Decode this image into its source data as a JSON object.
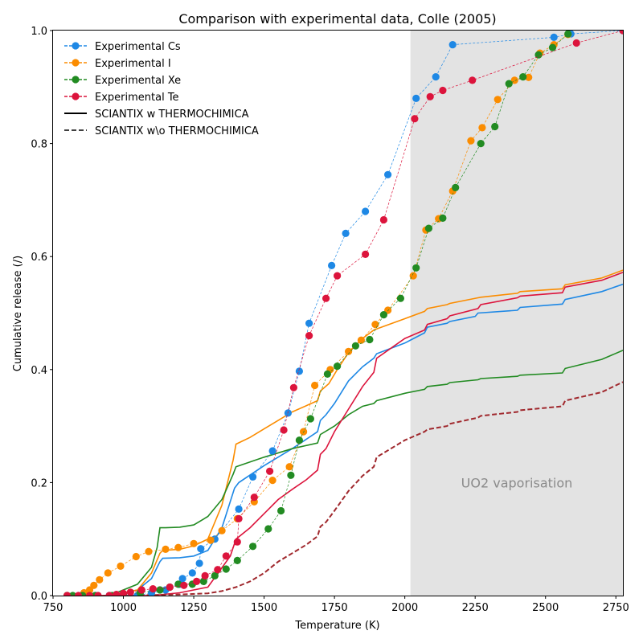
{
  "chart_data": {
    "type": "line",
    "title": "Comparison with experimental data, Colle (2005)",
    "xlabel": "Temperature (K)",
    "ylabel": "Cumulative release (/)",
    "xlim": [
      750,
      2775
    ],
    "ylim": [
      0,
      1.0
    ],
    "xticks": [
      750,
      1000,
      1250,
      1500,
      1750,
      2000,
      2250,
      2500,
      2750
    ],
    "yticks": [
      0.0,
      0.2,
      0.4,
      0.6,
      0.8,
      1.0
    ],
    "grid": false,
    "legend_position": "top-left",
    "shaded_region": {
      "x_start": 2020,
      "x_end": 2775,
      "color": "#e3e3e3",
      "label": "UO2 vaporisation",
      "label_at": [
        2200,
        0.2
      ]
    },
    "legend": [
      {
        "label": "Experimental Cs",
        "style": "marker-dashed",
        "color": "#1e88e5"
      },
      {
        "label": "Experimental I",
        "style": "marker-dashed",
        "color": "#fb8c00"
      },
      {
        "label": "Experimental Xe",
        "style": "marker-dashed",
        "color": "#228b22"
      },
      {
        "label": "Experimental Te",
        "style": "marker-dashed",
        "color": "#dc143c"
      },
      {
        "label": "SCIANTIX w THERMOCHIMICA",
        "style": "solid",
        "color": "#000000"
      },
      {
        "label": "SCIANTIX w\\o THERMOCHIMICA",
        "style": "dashed",
        "color": "#000000"
      }
    ],
    "experimental_series": [
      {
        "name": "Experimental Cs",
        "color": "#1e88e5",
        "x": [
          800,
          850,
          900,
          950,
          1000,
          1050,
          1100,
          1150,
          1200,
          1210,
          1245,
          1270,
          1275,
          1325,
          1410,
          1460,
          1530,
          1585,
          1625,
          1660,
          1740,
          1790,
          1860,
          1940,
          2040,
          2110,
          2170,
          2530,
          2590,
          2775
        ],
        "y": [
          0.0,
          0.0,
          0.0,
          0.0,
          0.0,
          0.0,
          0.005,
          0.01,
          0.02,
          0.03,
          0.04,
          0.057,
          0.083,
          0.1,
          0.153,
          0.21,
          0.256,
          0.323,
          0.397,
          0.482,
          0.584,
          0.641,
          0.68,
          0.745,
          0.88,
          0.918,
          0.975,
          0.988,
          0.994,
          1.0
        ]
      },
      {
        "name": "Experimental I",
        "color": "#fb8c00",
        "x": [
          800,
          860,
          880,
          895,
          915,
          945,
          990,
          1045,
          1090,
          1150,
          1195,
          1250,
          1310,
          1350,
          1405,
          1465,
          1530,
          1590,
          1640,
          1680,
          1735,
          1800,
          1845,
          1895,
          1940,
          2030,
          2075,
          2120,
          2170,
          2235,
          2275,
          2330,
          2390,
          2440,
          2480,
          2530,
          2580
        ],
        "y": [
          0.0,
          0.005,
          0.01,
          0.018,
          0.028,
          0.04,
          0.052,
          0.069,
          0.078,
          0.082,
          0.085,
          0.092,
          0.098,
          0.115,
          0.136,
          0.166,
          0.204,
          0.228,
          0.29,
          0.372,
          0.4,
          0.432,
          0.452,
          0.48,
          0.505,
          0.566,
          0.647,
          0.667,
          0.716,
          0.805,
          0.828,
          0.878,
          0.912,
          0.917,
          0.96,
          0.975,
          0.993
        ]
      },
      {
        "name": "Experimental Xe",
        "color": "#228b22",
        "x": [
          800,
          820,
          855,
          900,
          960,
          1000,
          1060,
          1130,
          1165,
          1195,
          1245,
          1285,
          1325,
          1365,
          1405,
          1460,
          1515,
          1560,
          1595,
          1625,
          1665,
          1725,
          1760,
          1825,
          1875,
          1925,
          1985,
          2040,
          2085,
          2135,
          2180,
          2270,
          2320,
          2370,
          2420,
          2475,
          2525,
          2580
        ],
        "y": [
          0.0,
          0.0,
          0.0,
          0.0,
          0.0,
          0.003,
          0.005,
          0.01,
          0.015,
          0.02,
          0.02,
          0.025,
          0.035,
          0.047,
          0.062,
          0.087,
          0.118,
          0.15,
          0.213,
          0.275,
          0.313,
          0.392,
          0.406,
          0.442,
          0.453,
          0.497,
          0.526,
          0.58,
          0.65,
          0.668,
          0.722,
          0.8,
          0.83,
          0.906,
          0.918,
          0.957,
          0.97,
          0.994
        ]
      },
      {
        "name": "Experimental Te",
        "color": "#dc143c",
        "x": [
          800,
          840,
          880,
          910,
          950,
          975,
          1000,
          1025,
          1065,
          1105,
          1165,
          1215,
          1260,
          1290,
          1335,
          1365,
          1405,
          1410,
          1465,
          1520,
          1570,
          1605,
          1660,
          1720,
          1760,
          1860,
          1925,
          2035,
          2090,
          2135,
          2240,
          2610,
          2775
        ],
        "y": [
          0.0,
          0.0,
          0.0,
          0.0,
          0.0,
          0.002,
          0.004,
          0.006,
          0.01,
          0.012,
          0.015,
          0.018,
          0.025,
          0.035,
          0.046,
          0.07,
          0.095,
          0.136,
          0.174,
          0.22,
          0.293,
          0.368,
          0.46,
          0.526,
          0.566,
          0.604,
          0.665,
          0.844,
          0.883,
          0.894,
          0.912,
          0.978,
          1.0
        ]
      }
    ],
    "model_series": [
      {
        "name": "SCIANTIX w THERMOCHIMICA - Cs",
        "style": "solid",
        "color": "#1e88e5",
        "x": [
          800,
          950,
          1050,
          1100,
          1130,
          1140,
          1200,
          1250,
          1300,
          1350,
          1395,
          1410,
          1500,
          1600,
          1690,
          1700,
          1720,
          1750,
          1800,
          1850,
          1890,
          1900,
          2000,
          2070,
          2080,
          2150,
          2160,
          2250,
          2260,
          2400,
          2410,
          2560,
          2570,
          2700,
          2775
        ],
        "y": [
          0.0,
          0.0,
          0.01,
          0.03,
          0.06,
          0.066,
          0.067,
          0.07,
          0.08,
          0.12,
          0.19,
          0.2,
          0.23,
          0.26,
          0.29,
          0.31,
          0.32,
          0.34,
          0.38,
          0.405,
          0.42,
          0.428,
          0.447,
          0.465,
          0.475,
          0.482,
          0.485,
          0.494,
          0.5,
          0.505,
          0.51,
          0.516,
          0.524,
          0.538,
          0.551
        ]
      },
      {
        "name": "SCIANTIX w THERMOCHIMICA - I",
        "style": "solid",
        "color": "#fb8c00",
        "x": [
          800,
          950,
          1050,
          1100,
          1130,
          1140,
          1200,
          1250,
          1300,
          1350,
          1390,
          1400,
          1450,
          1500,
          1550,
          1600,
          1690,
          1700,
          1730,
          1760,
          1800,
          1850,
          1890,
          1900,
          2000,
          2070,
          2080,
          2150,
          2160,
          2260,
          2270,
          2400,
          2410,
          2560,
          2570,
          2700,
          2775
        ],
        "y": [
          0.0,
          0.0,
          0.01,
          0.04,
          0.075,
          0.08,
          0.082,
          0.088,
          0.1,
          0.16,
          0.24,
          0.268,
          0.28,
          0.295,
          0.31,
          0.325,
          0.345,
          0.362,
          0.375,
          0.4,
          0.43,
          0.455,
          0.47,
          0.472,
          0.49,
          0.503,
          0.508,
          0.515,
          0.517,
          0.527,
          0.528,
          0.535,
          0.538,
          0.543,
          0.55,
          0.562,
          0.576
        ]
      },
      {
        "name": "SCIANTIX w THERMOCHIMICA - Xe",
        "style": "solid",
        "color": "#228b22",
        "x": [
          800,
          950,
          1050,
          1100,
          1120,
          1130,
          1150,
          1200,
          1250,
          1300,
          1350,
          1390,
          1400,
          1500,
          1600,
          1690,
          1700,
          1750,
          1800,
          1850,
          1890,
          1900,
          2000,
          2070,
          2080,
          2150,
          2160,
          2260,
          2270,
          2400,
          2410,
          2560,
          2570,
          2700,
          2775
        ],
        "y": [
          0.0,
          0.0,
          0.02,
          0.05,
          0.085,
          0.12,
          0.12,
          0.121,
          0.125,
          0.14,
          0.17,
          0.215,
          0.228,
          0.245,
          0.26,
          0.27,
          0.285,
          0.3,
          0.32,
          0.335,
          0.34,
          0.345,
          0.358,
          0.365,
          0.37,
          0.374,
          0.377,
          0.382,
          0.384,
          0.388,
          0.39,
          0.394,
          0.402,
          0.418,
          0.434
        ]
      },
      {
        "name": "SCIANTIX w THERMOCHIMICA - Te",
        "style": "solid",
        "color": "#dc143c",
        "x": [
          800,
          950,
          1100,
          1200,
          1300,
          1380,
          1400,
          1450,
          1500,
          1550,
          1600,
          1650,
          1690,
          1700,
          1720,
          1750,
          1800,
          1850,
          1890,
          1900,
          2000,
          2070,
          2080,
          2150,
          2160,
          2260,
          2270,
          2400,
          2410,
          2560,
          2570,
          2700,
          2775
        ],
        "y": [
          0.0,
          0.0,
          0.0,
          0.005,
          0.015,
          0.07,
          0.1,
          0.12,
          0.145,
          0.17,
          0.188,
          0.205,
          0.222,
          0.25,
          0.26,
          0.29,
          0.33,
          0.37,
          0.395,
          0.42,
          0.455,
          0.47,
          0.48,
          0.49,
          0.495,
          0.508,
          0.515,
          0.527,
          0.53,
          0.536,
          0.546,
          0.558,
          0.572
        ]
      },
      {
        "name": "SCIANTIX w\\o THERMOCHIMICA",
        "style": "dashed",
        "color": "#a0282d",
        "x": [
          800,
          1000,
          1200,
          1300,
          1350,
          1400,
          1450,
          1500,
          1550,
          1600,
          1650,
          1690,
          1700,
          1720,
          1750,
          1800,
          1850,
          1890,
          1900,
          2000,
          2070,
          2080,
          2150,
          2160,
          2260,
          2270,
          2400,
          2410,
          2560,
          2570,
          2700,
          2775
        ],
        "y": [
          0.0,
          0.0,
          0.002,
          0.004,
          0.008,
          0.015,
          0.025,
          0.04,
          0.06,
          0.075,
          0.09,
          0.105,
          0.122,
          0.13,
          0.15,
          0.185,
          0.212,
          0.228,
          0.245,
          0.275,
          0.29,
          0.294,
          0.3,
          0.304,
          0.315,
          0.318,
          0.325,
          0.328,
          0.335,
          0.345,
          0.36,
          0.378
        ]
      }
    ]
  }
}
